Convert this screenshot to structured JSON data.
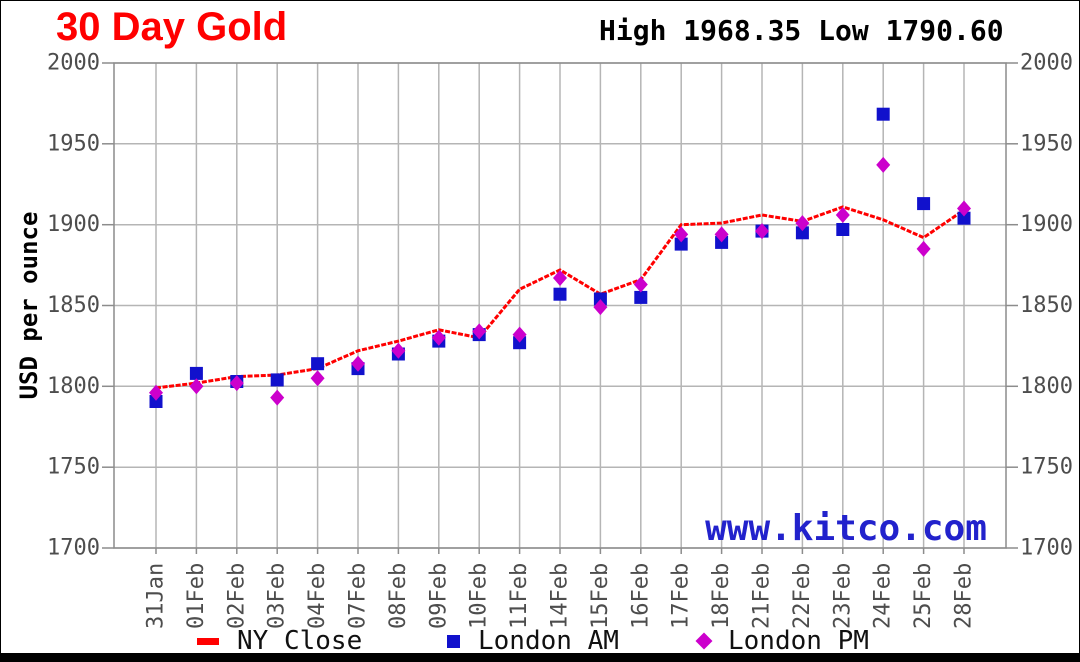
{
  "header": {
    "title": "30 Day Gold",
    "stats_text": "High 1968.35 Low 1790.60"
  },
  "watermark": "www.kitco.com",
  "colors": {
    "title": "#ff0000",
    "stats_text": "#000000",
    "watermark": "#2222cc",
    "grid": "#b5b5b5",
    "axis_border": "#8c8c8c",
    "axis_text": "#4d4d4d"
  },
  "chart_data": {
    "type": "line",
    "title": "30 Day Gold",
    "xlabel": "",
    "ylabel": "USD per ounce",
    "ylim": [
      1700,
      2000
    ],
    "y_ticks": [
      1700,
      1750,
      1800,
      1850,
      1900,
      1950,
      2000
    ],
    "grid": true,
    "legend_position": "bottom",
    "high": 1968.35,
    "low": 1790.6,
    "categories": [
      "31Jan",
      "01Feb",
      "02Feb",
      "03Feb",
      "04Feb",
      "07Feb",
      "08Feb",
      "09Feb",
      "10Feb",
      "11Feb",
      "14Feb",
      "15Feb",
      "16Feb",
      "17Feb",
      "18Feb",
      "21Feb",
      "22Feb",
      "23Feb",
      "24Feb",
      "25Feb",
      "28Feb"
    ],
    "series": [
      {
        "name": "NY Close",
        "style": "line",
        "marker": "dash",
        "color": "#ff0000",
        "values": [
          1799,
          1802,
          1806,
          1807,
          1811,
          1822,
          1828,
          1835,
          1830,
          1860,
          1872,
          1857,
          1866,
          1900,
          1901,
          1906,
          1902,
          1911,
          1903,
          1892,
          1909
        ]
      },
      {
        "name": "London AM",
        "style": "scatter",
        "marker": "square",
        "color": "#1111cc",
        "values": [
          1790.6,
          1808,
          1803,
          1804,
          1814,
          1811,
          1820,
          1828,
          1832,
          1827,
          1857,
          1854,
          1855,
          1888,
          1889,
          1896,
          1895,
          1897,
          1968.35,
          1913,
          1904
        ]
      },
      {
        "name": "London PM",
        "style": "scatter",
        "marker": "diamond",
        "color": "#cc00cc",
        "values": [
          1796,
          1800,
          1802,
          1793,
          1805,
          1814,
          1822,
          1830,
          1834,
          1832,
          1867,
          1849,
          1863,
          1894,
          1894,
          1896,
          1901,
          1906,
          1937,
          1885,
          1910
        ]
      }
    ]
  }
}
